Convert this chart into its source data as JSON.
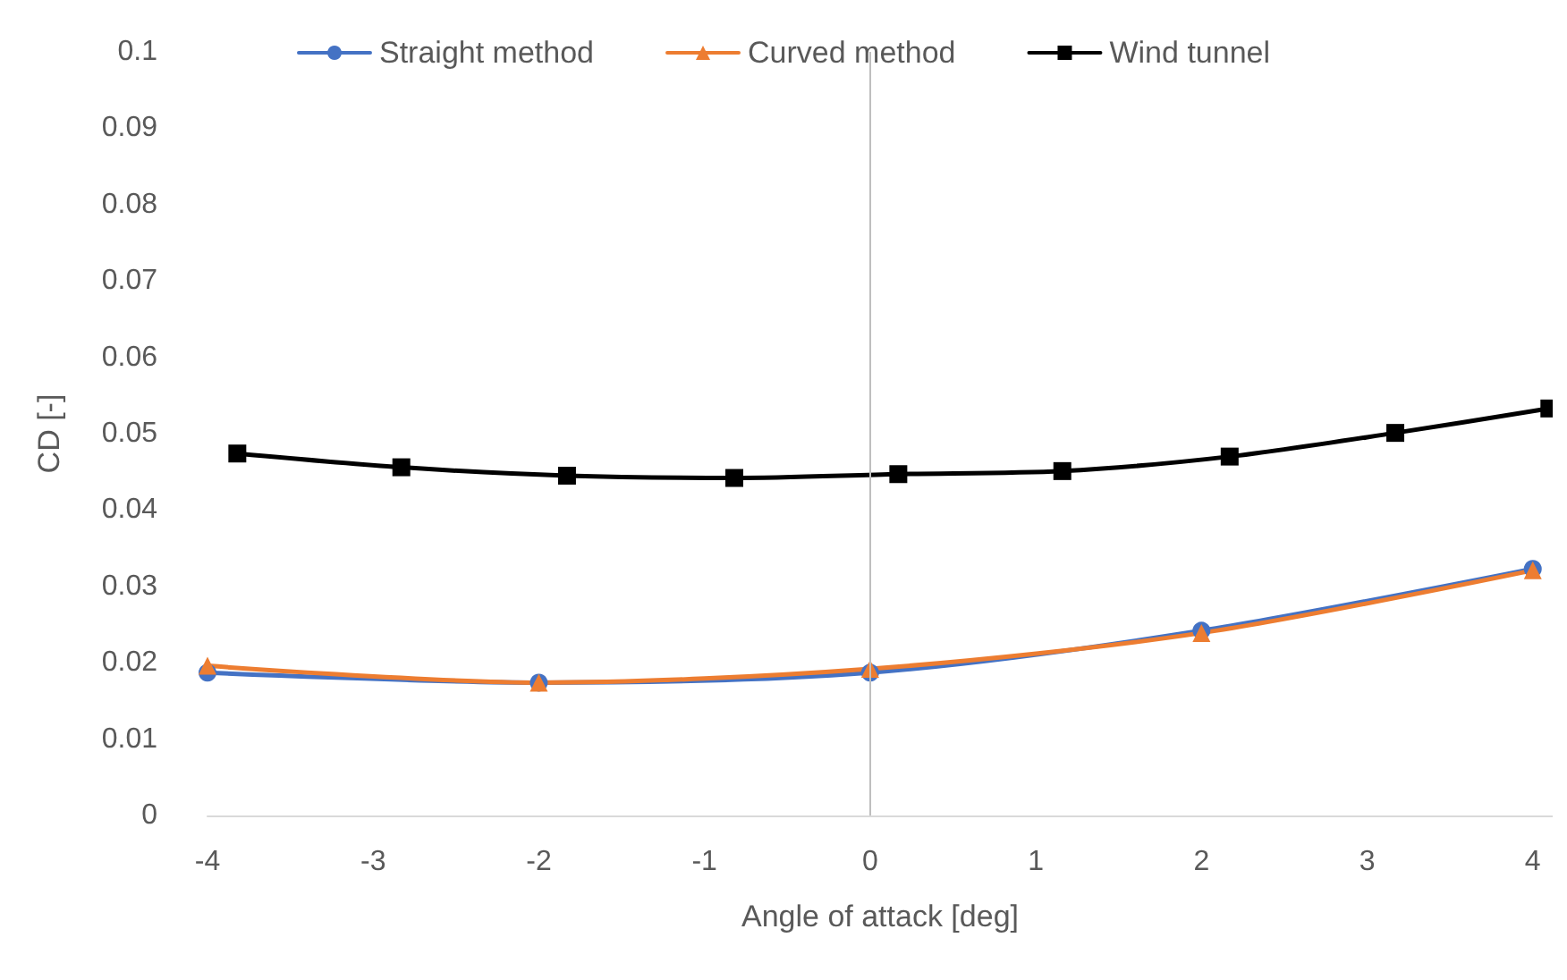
{
  "chart_data": {
    "type": "line",
    "xlabel": "Angle of attack [deg]",
    "ylabel": "CD [-]",
    "xlim": [
      -4,
      4.12
    ],
    "xticks": [
      -4,
      -3,
      -2,
      -1,
      0,
      1,
      2,
      3,
      4
    ],
    "ylim": [
      0,
      0.1
    ],
    "yticks": [
      0,
      0.01,
      0.02,
      0.03,
      0.04,
      0.05,
      0.06,
      0.07,
      0.08,
      0.09,
      0.1
    ],
    "grid": false,
    "legend": "top",
    "line_style": "solid",
    "ref_lines": [
      {
        "axis": "x",
        "value": 0,
        "color": "#bfbfbf"
      }
    ],
    "series": [
      {
        "name": "Straight method",
        "color": "#4472c4",
        "marker": "circle",
        "x": [
          -4,
          -2,
          0,
          2,
          4
        ],
        "values": [
          0.0187,
          0.0174,
          0.0187,
          0.0242,
          0.0323
        ]
      },
      {
        "name": "Curved method",
        "color": "#ed7d31",
        "marker": "triangle",
        "x": [
          -4,
          -2,
          0,
          2,
          4
        ],
        "values": [
          0.0196,
          0.0174,
          0.0192,
          0.0239,
          0.0321
        ]
      },
      {
        "name": "Wind tunnel",
        "color": "#000000",
        "marker": "square",
        "x": [
          -3.82,
          -2.83,
          -1.83,
          -0.82,
          0.17,
          1.16,
          2.17,
          3.17,
          4.1
        ],
        "values": [
          0.0474,
          0.0456,
          0.0445,
          0.0442,
          0.0447,
          0.0451,
          0.047,
          0.0501,
          0.0533
        ]
      }
    ]
  }
}
